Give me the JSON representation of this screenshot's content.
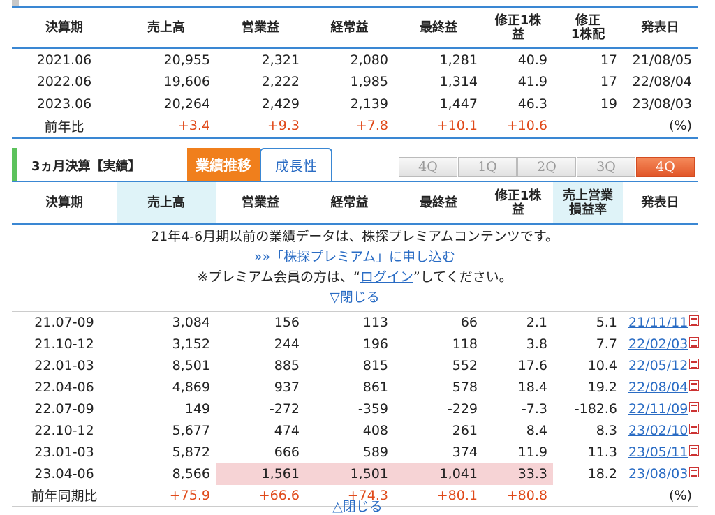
{
  "annual": {
    "headers": [
      "決算期",
      "売上高",
      "営業益",
      "経常益",
      "最終益",
      "修正1株益",
      "修正\n1株配",
      "発表日"
    ],
    "rows": [
      [
        "2021.06",
        "20,955",
        "2,321",
        "2,080",
        "1,281",
        "40.9",
        "17",
        "21/08/05"
      ],
      [
        "2022.06",
        "19,606",
        "2,222",
        "1,985",
        "1,314",
        "41.9",
        "17",
        "22/08/04"
      ],
      [
        "2023.06",
        "20,264",
        "2,429",
        "2,139",
        "1,447",
        "46.3",
        "19",
        "23/08/03"
      ]
    ],
    "yoy": [
      "前年比",
      "+3.4",
      "+9.3",
      "+7.8",
      "+10.1",
      "+10.6",
      "",
      "(%)"
    ]
  },
  "quarterly": {
    "title": "3ヵ月決算【実績】",
    "tabs": [
      "業績推移",
      "成長性"
    ],
    "q_buttons": [
      "4Q",
      "1Q",
      "2Q",
      "3Q",
      "4Q"
    ],
    "headers": [
      "決算期",
      "売上高",
      "営業益",
      "経常益",
      "最終益",
      "修正1株益",
      "売上営業\n損益率",
      "発表日"
    ],
    "notice": {
      "line1": "21年4-6月期以前の業績データは、株探プレミアムコンテンツです。",
      "line2": "»»「株探プレミアム」に申し込む",
      "line3_pre": "※プレミアム会員の方は、“",
      "line3_link": "ログイン",
      "line3_post": "”してください。",
      "close": "▽閉じる"
    },
    "rows": [
      [
        "21.07-09",
        "3,084",
        "156",
        "113",
        "66",
        "2.1",
        "5.1",
        "21/11/11"
      ],
      [
        "21.10-12",
        "3,152",
        "244",
        "196",
        "118",
        "3.8",
        "7.7",
        "22/02/03"
      ],
      [
        "22.01-03",
        "8,501",
        "885",
        "815",
        "552",
        "17.6",
        "10.4",
        "22/05/12"
      ],
      [
        "22.04-06",
        "4,869",
        "937",
        "861",
        "578",
        "18.4",
        "19.2",
        "22/08/04"
      ],
      [
        "22.07-09",
        "149",
        "-272",
        "-359",
        "-229",
        "-7.3",
        "-182.6",
        "22/11/09"
      ],
      [
        "22.10-12",
        "5,677",
        "474",
        "408",
        "261",
        "8.4",
        "8.3",
        "23/02/10"
      ],
      [
        "23.01-03",
        "5,872",
        "666",
        "589",
        "374",
        "11.9",
        "11.3",
        "23/05/11"
      ],
      [
        "23.04-06",
        "8,566",
        "1,561",
        "1,501",
        "1,041",
        "33.3",
        "18.2",
        "23/08/03"
      ]
    ],
    "yoy": [
      "前年同期比",
      "+75.9",
      "+66.6",
      "+74.3",
      "+80.1",
      "+80.8",
      "",
      "(%)"
    ],
    "close_bottom": "△閉じる"
  },
  "colors": {
    "accent": "#3a87d3",
    "orange": "#f07f1c",
    "positive": "#e04a1a",
    "highlight": "#f6d3d5",
    "header_highlight": "#dff3f8",
    "green": "#5cc25c"
  }
}
